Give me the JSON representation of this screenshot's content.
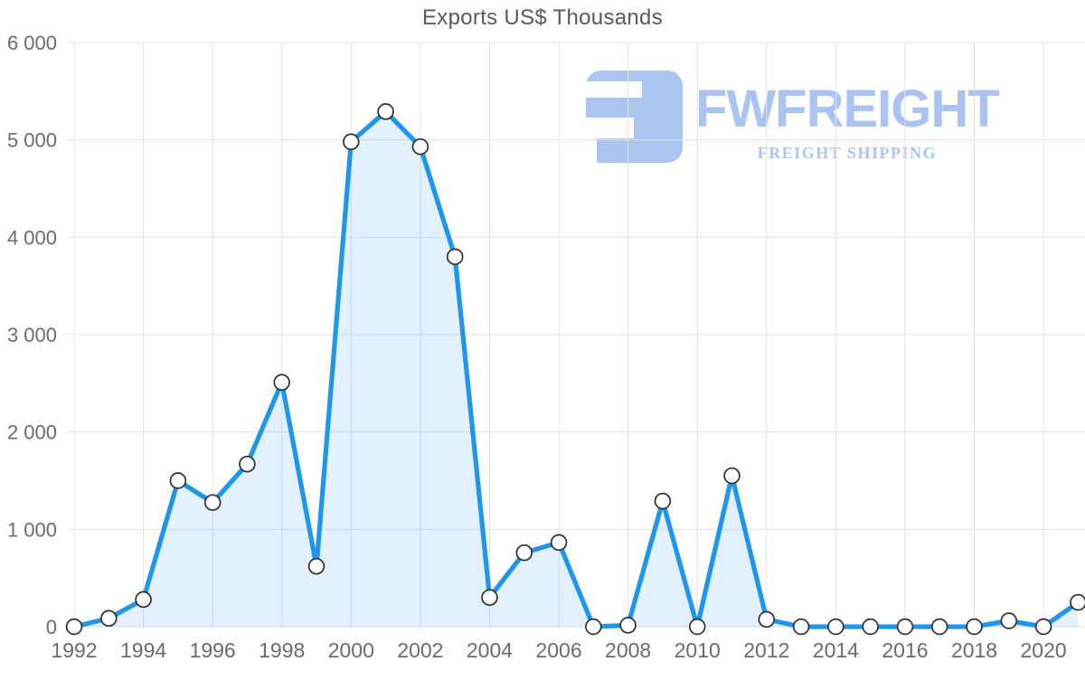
{
  "title": "Exports US$ Thousands",
  "watermark": {
    "brand": "FWFREIGHT",
    "tagline": "FREIGHT SHIPPING",
    "color": "#abc4ef"
  },
  "colors": {
    "line": "#1e96ee",
    "area_fill": "rgba(30, 150, 238, 0.13)",
    "grid": "#e2e2e2",
    "axis_text": "#6b6b6b",
    "title_text": "#5a5a5a",
    "marker_fill": "#ffffff",
    "marker_stroke": "#2e2e2e"
  },
  "chart_data": {
    "type": "area",
    "title": "Exports US$ Thousands",
    "xlabel": "",
    "ylabel": "",
    "xlim": [
      1992,
      2021
    ],
    "ylim": [
      0,
      6000
    ],
    "grid": true,
    "legend": false,
    "x": [
      1992,
      1993,
      1994,
      1995,
      1996,
      1997,
      1998,
      1999,
      2000,
      2001,
      2002,
      2003,
      2004,
      2005,
      2006,
      2007,
      2008,
      2009,
      2010,
      2011,
      2012,
      2013,
      2014,
      2015,
      2016,
      2017,
      2018,
      2019,
      2020,
      2021
    ],
    "series": [
      {
        "name": "Exports US$ Thousands",
        "values": [
          0,
          85,
          280,
          1500,
          1275,
          1670,
          2510,
          620,
          4980,
          5290,
          4930,
          3800,
          300,
          760,
          865,
          0,
          15,
          1290,
          0,
          1550,
          75,
          0,
          0,
          0,
          0,
          0,
          0,
          60,
          0,
          250
        ]
      }
    ],
    "x_tick_years": [
      1992,
      1994,
      1996,
      1998,
      2000,
      2002,
      2004,
      2006,
      2008,
      2010,
      2012,
      2014,
      2016,
      2018,
      2020
    ],
    "y_ticks": [
      0,
      1000,
      2000,
      3000,
      4000,
      5000,
      6000
    ],
    "y_tick_labels": [
      "0",
      "1 000",
      "2 000",
      "3 000",
      "4 000",
      "5 000",
      "6 000"
    ]
  }
}
